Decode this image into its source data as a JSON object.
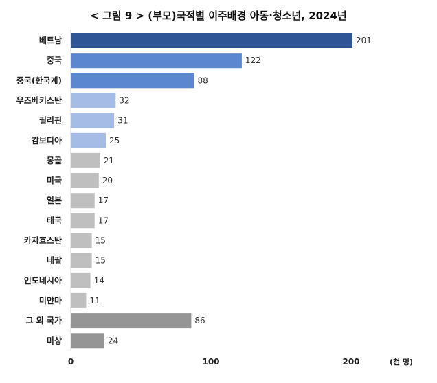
{
  "chart_data": {
    "type": "bar",
    "orientation": "horizontal",
    "title": "< 그림 9 > (부모)국적별 이주배경 아동·청소년, 2024년",
    "unit": "(천 명)",
    "xlim": [
      0,
      200
    ],
    "xticks": [
      0,
      100,
      200
    ],
    "grid": false,
    "legend": "none",
    "categories": [
      "베트남",
      "중국",
      "중국(한국계)",
      "우즈베키스탄",
      "필리핀",
      "캄보디아",
      "몽골",
      "미국",
      "일본",
      "태국",
      "카자흐스탄",
      "네팔",
      "인도네시아",
      "미얀마",
      "그 외 국가",
      "미상"
    ],
    "values": [
      201,
      122,
      88,
      32,
      31,
      25,
      21,
      20,
      17,
      17,
      15,
      15,
      14,
      11,
      86,
      24
    ],
    "bar_colors": [
      "#2F5597",
      "#5B86D0",
      "#5B86D0",
      "#A5BDE6",
      "#A5BDE6",
      "#A5BDE6",
      "#BFBFBF",
      "#BFBFBF",
      "#BFBFBF",
      "#BFBFBF",
      "#BFBFBF",
      "#BFBFBF",
      "#BFBFBF",
      "#BFBFBF",
      "#959595",
      "#959595"
    ]
  }
}
